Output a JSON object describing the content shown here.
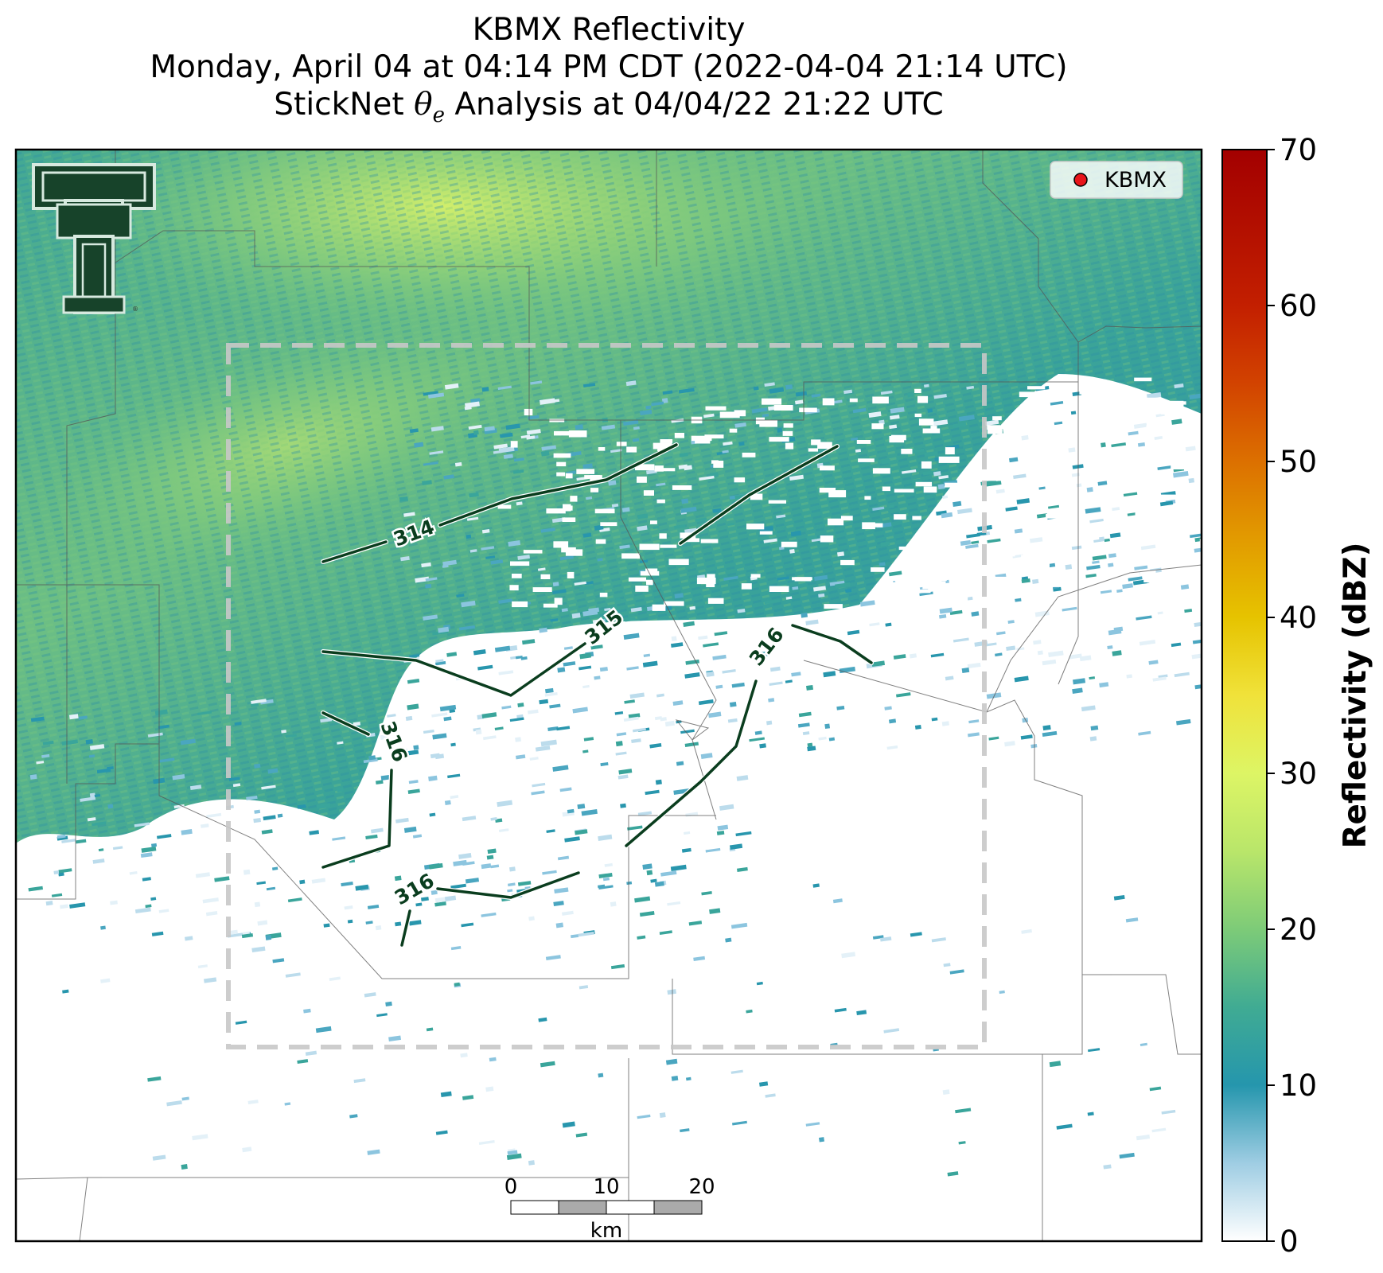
{
  "title": {
    "line1": "KBMX Reflectivity",
    "line2": "Monday, April 04 at 04:14 PM CDT (2022-04-04 21:14 UTC)",
    "line3_prefix": "StickNet ",
    "line3_symbol": "θ",
    "line3_subscript": "e",
    "line3_suffix": " Analysis at 04/04/22 21:22 UTC"
  },
  "legend": {
    "label": "KBMX",
    "marker_color": "#e8141a"
  },
  "colorbar": {
    "title": "Reflectivity (dBZ)",
    "min": 0,
    "max": 70,
    "ticks": [
      "0",
      "10",
      "20",
      "30",
      "40",
      "50",
      "60",
      "70"
    ],
    "stops": [
      {
        "value": 0,
        "color": "#ffffff"
      },
      {
        "value": 5,
        "color": "#9fcde3"
      },
      {
        "value": 10,
        "color": "#2596ad"
      },
      {
        "value": 15,
        "color": "#40ab93"
      },
      {
        "value": 20,
        "color": "#7dcb78"
      },
      {
        "value": 25,
        "color": "#b9e66a"
      },
      {
        "value": 30,
        "color": "#ddf565"
      },
      {
        "value": 35,
        "color": "#f0e23a"
      },
      {
        "value": 40,
        "color": "#e6c300"
      },
      {
        "value": 45,
        "color": "#e29b00"
      },
      {
        "value": 50,
        "color": "#dc7000"
      },
      {
        "value": 55,
        "color": "#d24300"
      },
      {
        "value": 60,
        "color": "#c31f00"
      },
      {
        "value": 70,
        "color": "#a30000"
      }
    ]
  },
  "contours": {
    "line_color": "#0a3d1e",
    "labels": [
      {
        "text": "314"
      },
      {
        "text": "315"
      },
      {
        "text": "316"
      },
      {
        "text": "316"
      },
      {
        "text": "316"
      }
    ]
  },
  "scale_bar": {
    "ticks": [
      "0",
      "10",
      "20"
    ],
    "unit": "km"
  },
  "colors": {
    "analysis_box": "#c8c8c8",
    "county_lines": "#555555"
  },
  "logo": {
    "name": "texas-tech-double-t-logo"
  }
}
